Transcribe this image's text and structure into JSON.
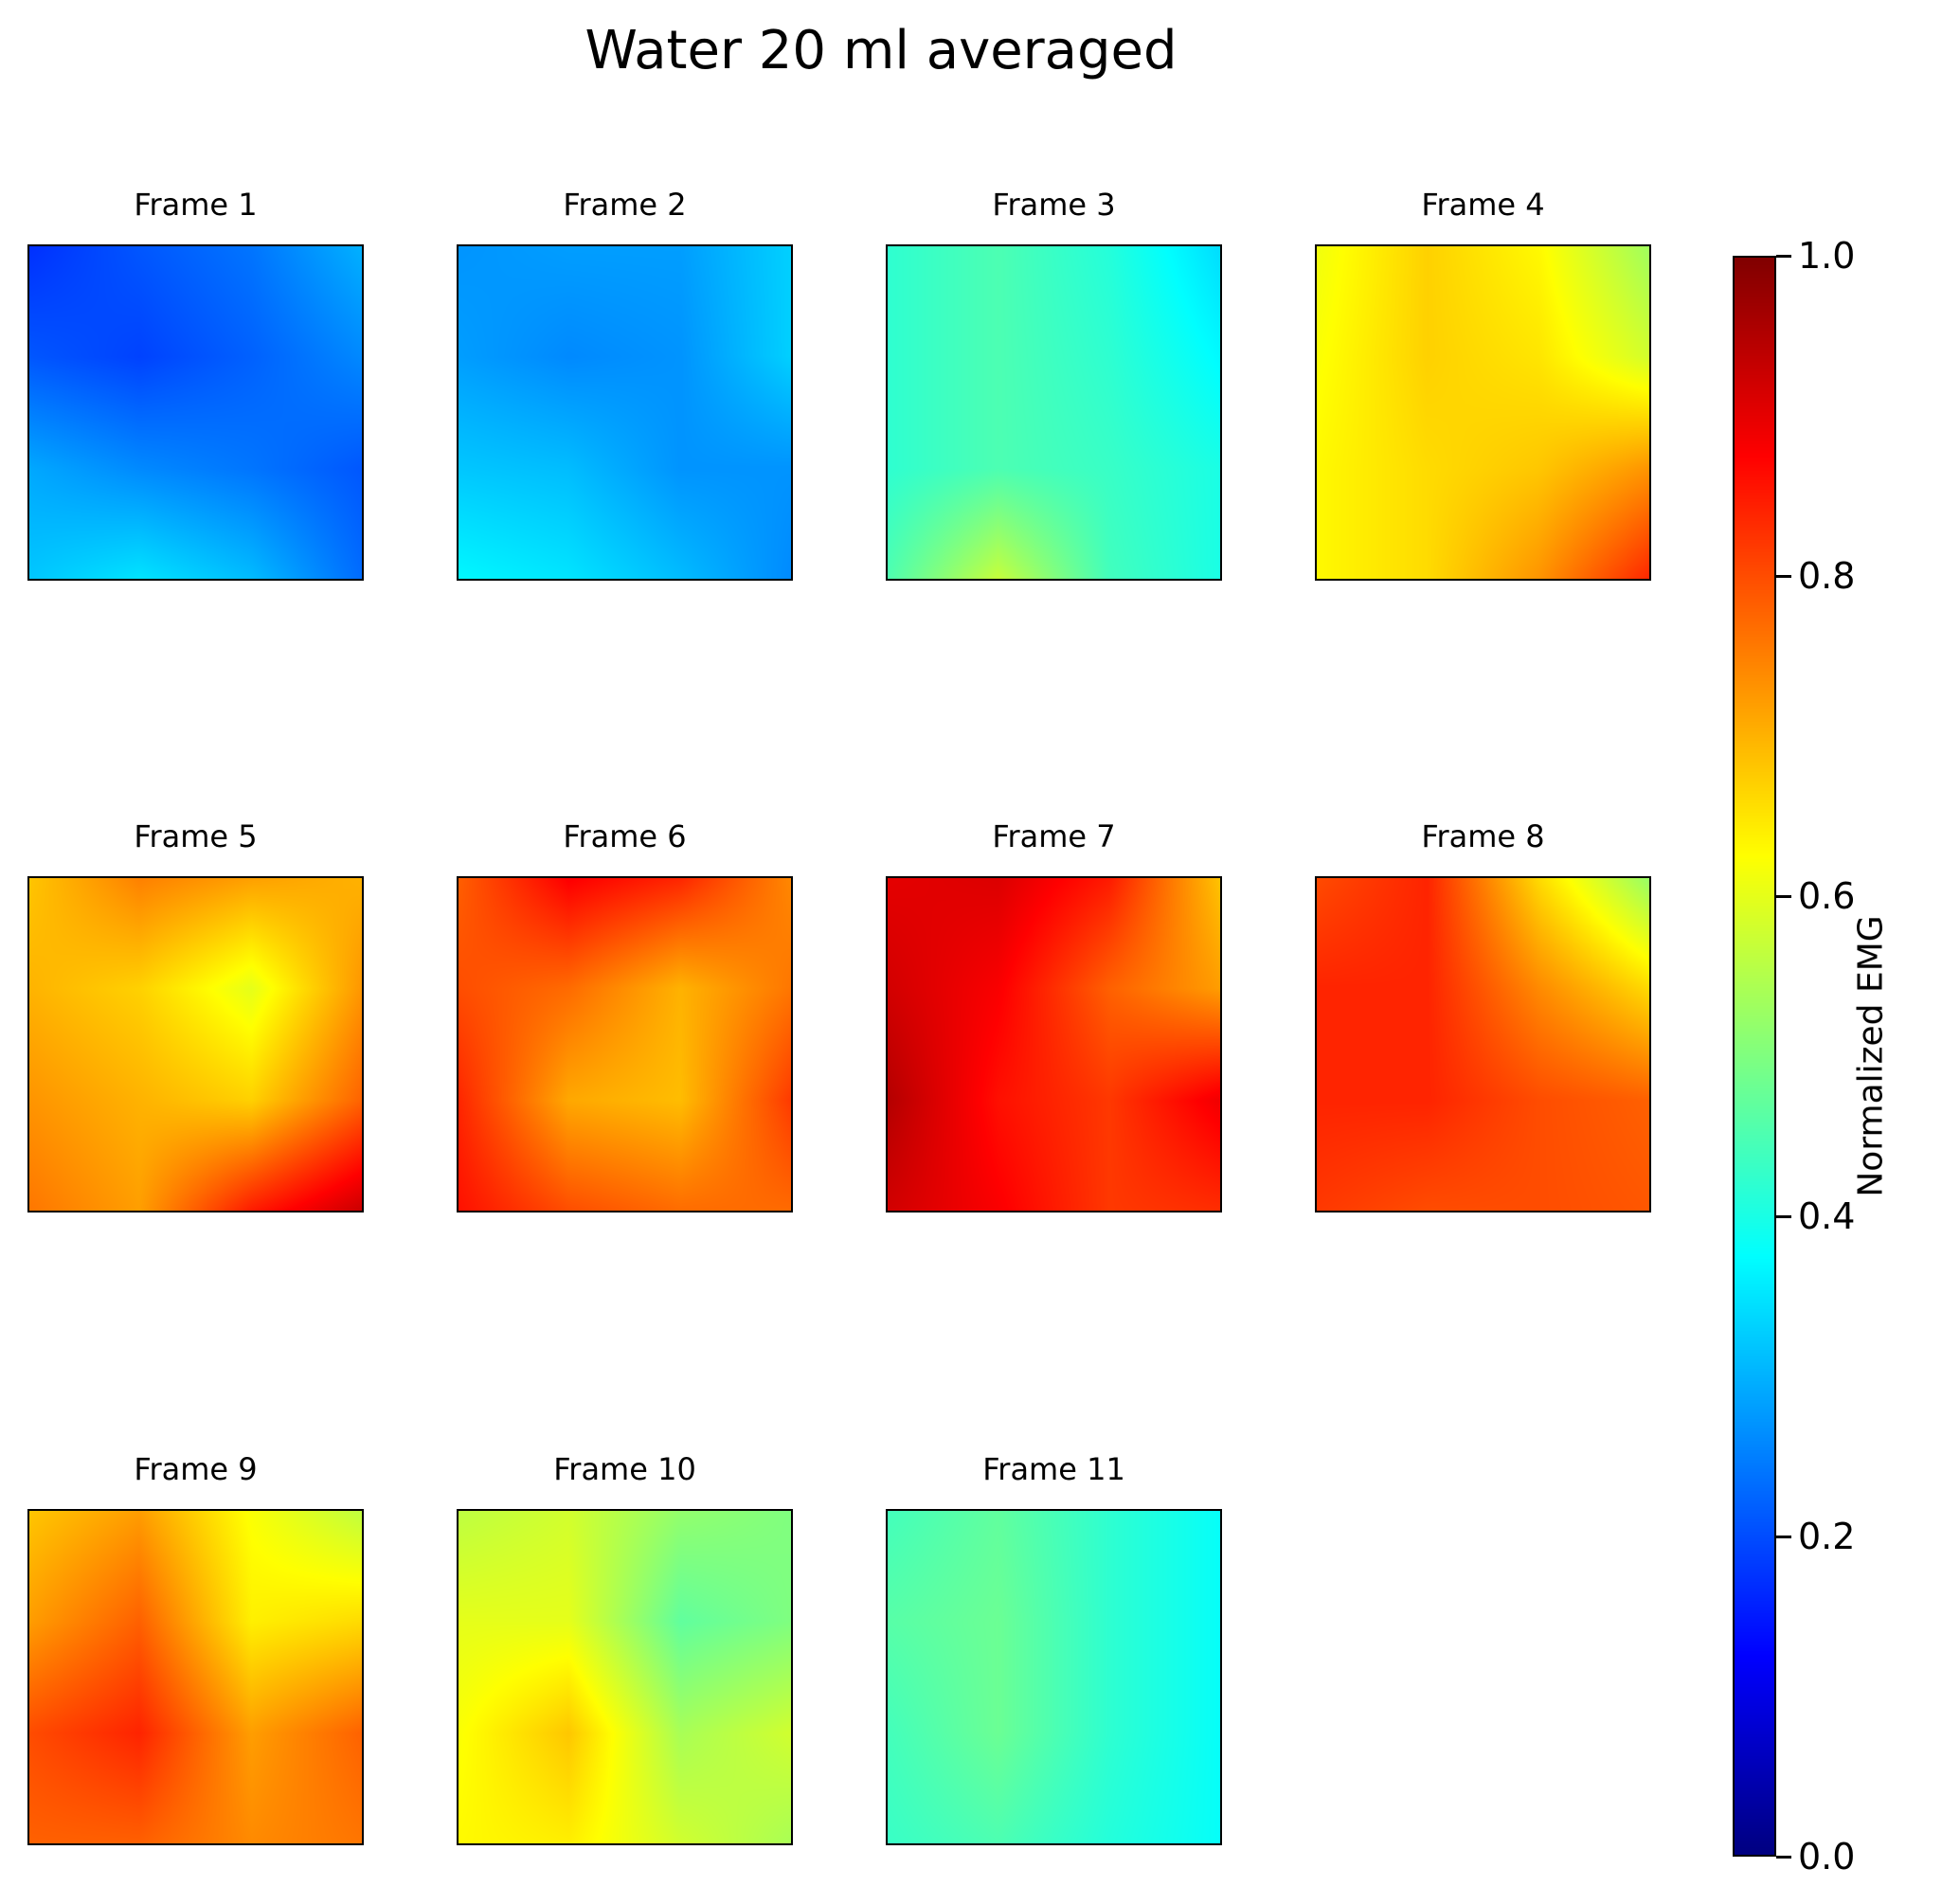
{
  "chart_data": {
    "type": "heatmap",
    "title": "Water 20 ml averaged",
    "colormap": "jet",
    "colorbar": {
      "label": "Normalized EMG",
      "range": [
        0.0,
        1.0
      ],
      "ticks": [
        "0.0",
        "0.2",
        "0.4",
        "0.6",
        "0.8",
        "1.0"
      ]
    },
    "layout": "3 rows x 4 columns",
    "panels": [
      {
        "label": "Frame 1",
        "values": [
          [
            0.17,
            0.21,
            0.24,
            0.3
          ],
          [
            0.21,
            0.19,
            0.22,
            0.26
          ],
          [
            0.29,
            0.26,
            0.24,
            0.21
          ],
          [
            0.32,
            0.35,
            0.31,
            0.23
          ]
        ]
      },
      {
        "label": "Frame 2",
        "values": [
          [
            0.27,
            0.28,
            0.28,
            0.33
          ],
          [
            0.28,
            0.26,
            0.27,
            0.33
          ],
          [
            0.32,
            0.31,
            0.27,
            0.27
          ],
          [
            0.37,
            0.35,
            0.31,
            0.26
          ]
        ]
      },
      {
        "label": "Frame 3",
        "values": [
          [
            0.42,
            0.45,
            0.41,
            0.34
          ],
          [
            0.42,
            0.45,
            0.42,
            0.37
          ],
          [
            0.42,
            0.45,
            0.43,
            0.4
          ],
          [
            0.45,
            0.57,
            0.44,
            0.4
          ]
        ]
      },
      {
        "label": "Frame 4",
        "values": [
          [
            0.61,
            0.67,
            0.63,
            0.53
          ],
          [
            0.62,
            0.67,
            0.65,
            0.58
          ],
          [
            0.63,
            0.66,
            0.68,
            0.73
          ],
          [
            0.63,
            0.66,
            0.73,
            0.84
          ]
        ]
      },
      {
        "label": "Frame 5",
        "values": [
          [
            0.68,
            0.75,
            0.72,
            0.7
          ],
          [
            0.7,
            0.67,
            0.6,
            0.73
          ],
          [
            0.73,
            0.7,
            0.67,
            0.78
          ],
          [
            0.76,
            0.72,
            0.85,
            0.93
          ]
        ]
      },
      {
        "label": "Frame 6",
        "values": [
          [
            0.78,
            0.88,
            0.84,
            0.74
          ],
          [
            0.8,
            0.77,
            0.7,
            0.76
          ],
          [
            0.84,
            0.71,
            0.69,
            0.82
          ],
          [
            0.86,
            0.8,
            0.77,
            0.77
          ]
        ]
      },
      {
        "label": "Frame 7",
        "values": [
          [
            0.9,
            0.91,
            0.85,
            0.68
          ],
          [
            0.92,
            0.88,
            0.78,
            0.72
          ],
          [
            0.95,
            0.86,
            0.82,
            0.89
          ],
          [
            0.92,
            0.88,
            0.82,
            0.83
          ]
        ]
      },
      {
        "label": "Frame 8",
        "values": [
          [
            0.8,
            0.84,
            0.66,
            0.52
          ],
          [
            0.84,
            0.84,
            0.74,
            0.66
          ],
          [
            0.84,
            0.84,
            0.8,
            0.78
          ],
          [
            0.82,
            0.8,
            0.8,
            0.79
          ]
        ]
      },
      {
        "label": "Frame 9",
        "values": [
          [
            0.68,
            0.72,
            0.62,
            0.56
          ],
          [
            0.72,
            0.78,
            0.64,
            0.66
          ],
          [
            0.8,
            0.84,
            0.72,
            0.78
          ],
          [
            0.78,
            0.78,
            0.74,
            0.76
          ]
        ]
      },
      {
        "label": "Frame 10",
        "values": [
          [
            0.56,
            0.58,
            0.52,
            0.5
          ],
          [
            0.6,
            0.6,
            0.47,
            0.5
          ],
          [
            0.62,
            0.68,
            0.54,
            0.58
          ],
          [
            0.63,
            0.64,
            0.58,
            0.54
          ]
        ]
      },
      {
        "label": "Frame 11",
        "values": [
          [
            0.44,
            0.47,
            0.42,
            0.38
          ],
          [
            0.46,
            0.48,
            0.42,
            0.38
          ],
          [
            0.44,
            0.48,
            0.42,
            0.38
          ],
          [
            0.43,
            0.45,
            0.41,
            0.38
          ]
        ]
      }
    ]
  }
}
